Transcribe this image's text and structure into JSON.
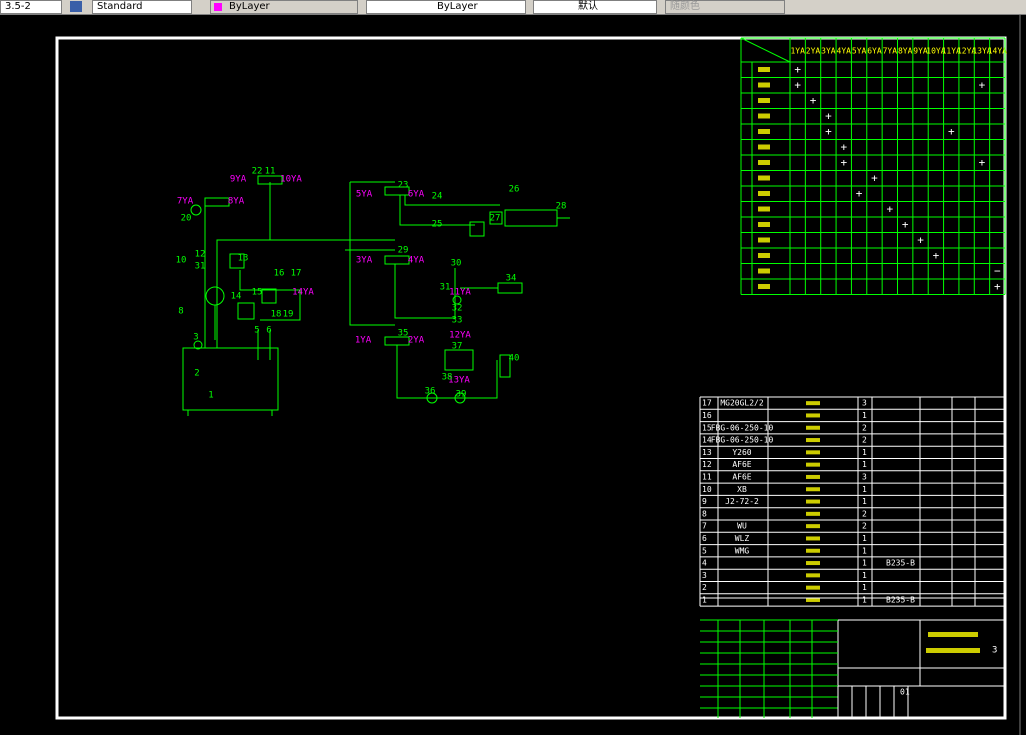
{
  "toolbar": {
    "items": [
      "3.5-2",
      "Standard",
      "ByLayer",
      "ByLayer",
      "默认",
      "随颜色"
    ]
  },
  "schematic_labels": [
    "9YA",
    "10YA",
    "7YA",
    "8YA",
    "22",
    "11",
    "20",
    "12",
    "10",
    "31",
    "13",
    "16",
    "17",
    "14YA",
    "14",
    "15",
    "18",
    "19",
    "8",
    "3",
    "2",
    "1",
    "5",
    "6",
    "5YA",
    "6YA",
    "23",
    "24",
    "26",
    "25",
    "27",
    "28",
    "3YA",
    "4YA",
    "29",
    "30",
    "31",
    "11YA",
    "34",
    "32",
    "33",
    "12YA",
    "1YA",
    "2YA",
    "35",
    "37",
    "40",
    "13YA",
    "38",
    "36",
    "39"
  ],
  "solenoid_table": {
    "columns": [
      "1YA",
      "2YA",
      "3YA",
      "4YA",
      "5YA",
      "6YA",
      "7YA",
      "8YA",
      "9YA",
      "10YA",
      "11YA",
      "12YA",
      "13YA",
      "14YA"
    ],
    "marks": [
      {
        "r": 0,
        "c": 0,
        "t": "+"
      },
      {
        "r": 1,
        "c": 0,
        "t": "+"
      },
      {
        "r": 1,
        "c": 12,
        "t": "+"
      },
      {
        "r": 2,
        "c": 1,
        "t": "+"
      },
      {
        "r": 3,
        "c": 2,
        "t": "+"
      },
      {
        "r": 4,
        "c": 2,
        "t": "+"
      },
      {
        "r": 4,
        "c": 10,
        "t": "+"
      },
      {
        "r": 5,
        "c": 3,
        "t": "+"
      },
      {
        "r": 6,
        "c": 3,
        "t": "+"
      },
      {
        "r": 6,
        "c": 12,
        "t": "+"
      },
      {
        "r": 7,
        "c": 5,
        "t": "+"
      },
      {
        "r": 8,
        "c": 4,
        "t": "+"
      },
      {
        "r": 9,
        "c": 6,
        "t": "+"
      },
      {
        "r": 10,
        "c": 7,
        "t": "+"
      },
      {
        "r": 11,
        "c": 8,
        "t": "+"
      },
      {
        "r": 12,
        "c": 9,
        "t": "+"
      },
      {
        "r": 13,
        "c": 13,
        "t": "−"
      },
      {
        "r": 14,
        "c": 13,
        "t": "+"
      }
    ]
  },
  "parts_list": {
    "rows": [
      {
        "no": "17",
        "code": "MG20GL2/2",
        "qty": "3"
      },
      {
        "no": "16",
        "qty": "1"
      },
      {
        "no": "15",
        "code": "FBG-06-250-10",
        "qty": "2"
      },
      {
        "no": "14",
        "code": "FBG-06-250-10",
        "qty": "2"
      },
      {
        "no": "13",
        "code": "Y260",
        "qty": "1"
      },
      {
        "no": "12",
        "code": "AF6E",
        "qty": "1"
      },
      {
        "no": "11",
        "code": "AF6E",
        "qty": "3"
      },
      {
        "no": "10",
        "code": "XB",
        "qty": "1"
      },
      {
        "no": "9",
        "code": "J2-72-2",
        "qty": "1"
      },
      {
        "no": "8",
        "qty": "2"
      },
      {
        "no": "7",
        "code": "WU",
        "qty": "2"
      },
      {
        "no": "6",
        "code": "WLZ",
        "qty": "1"
      },
      {
        "no": "5",
        "code": "WMG",
        "qty": "1"
      },
      {
        "no": "4",
        "qty": "1",
        "material": "B235-B"
      },
      {
        "no": "3",
        "qty": "1"
      },
      {
        "no": "2",
        "qty": "1"
      },
      {
        "no": "1",
        "qty": "1",
        "material": "B235-B"
      }
    ]
  },
  "title_block": {
    "sheets": "3",
    "scale": "01"
  }
}
